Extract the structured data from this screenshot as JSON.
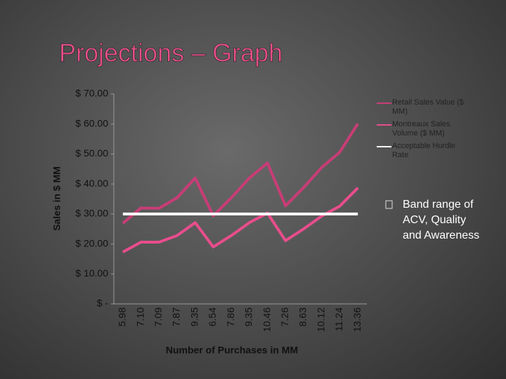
{
  "chart_data": {
    "type": "line",
    "title": "Projections – Graph",
    "x_label": "Number of Purchases in MM",
    "y_label": "Sales in $ MM",
    "categories": [
      "5.98",
      "7.10",
      "7.09",
      "7.87",
      "9.35",
      "6.54",
      "7.86",
      "9.35",
      "10.46",
      "7.26",
      "8.63",
      "10.12",
      "11.24",
      "13.36"
    ],
    "series": [
      {
        "name": "Retail Sales Value ($ MM)",
        "color": "#c83d76",
        "values": [
          26.9,
          32,
          31.9,
          35.4,
          42,
          29.4,
          35.4,
          42,
          47,
          32.7,
          38.8,
          45.5,
          50.6,
          60.1
        ]
      },
      {
        "name": "Montreaux Sales Volume ($ MM)",
        "color": "#e84d8c",
        "values": [
          17.3,
          20.6,
          20.6,
          22.8,
          27.1,
          19,
          22.8,
          27.1,
          30.3,
          21.1,
          25,
          29.3,
          32.6,
          38.7
        ]
      },
      {
        "name": "Acceptable Hurdle Rate",
        "color": "#ffffff",
        "values": [
          30,
          30,
          30,
          30,
          30,
          30,
          30,
          30,
          30,
          30,
          30,
          30,
          30,
          30
        ]
      }
    ],
    "ylim": [
      0,
      70
    ],
    "yticks": [
      {
        "value": 0,
        "label": "$ -"
      },
      {
        "value": 10,
        "label": "$ 10.00"
      },
      {
        "value": 20,
        "label": "$ 20.00"
      },
      {
        "value": 30,
        "label": "$ 30.00"
      },
      {
        "value": 40,
        "label": "$ 40.00"
      },
      {
        "value": 50,
        "label": "$ 50.00"
      },
      {
        "value": 60,
        "label": "$ 60.00"
      },
      {
        "value": 70,
        "label": "$ 70.00"
      }
    ],
    "grid": false,
    "legend": "right",
    "bullet": "Band range of ACV, Quality and Awareness"
  }
}
